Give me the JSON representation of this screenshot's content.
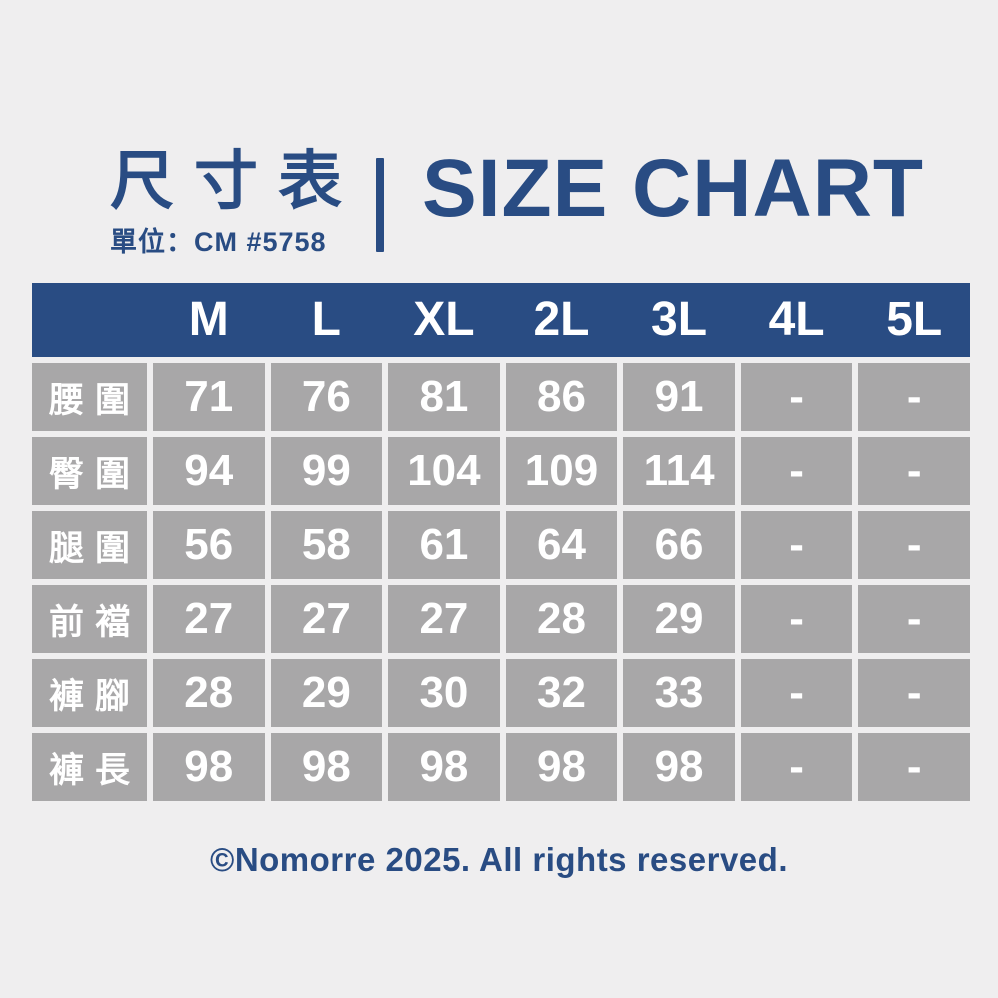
{
  "page": {
    "background_color": "#efeeef",
    "accent_color": "#294c83",
    "cell_color": "#a8a7a8"
  },
  "header": {
    "title_zh": "尺寸表",
    "unit_line": "單位：CM #5758",
    "title_en": "SIZE CHART"
  },
  "table": {
    "columns": [
      "M",
      "L",
      "XL",
      "2L",
      "3L",
      "4L",
      "5L"
    ],
    "rows": [
      {
        "label": "腰圍",
        "values": [
          "71",
          "76",
          "81",
          "86",
          "91",
          "-",
          "-"
        ]
      },
      {
        "label": "臀圍",
        "values": [
          "94",
          "99",
          "104",
          "109",
          "114",
          "-",
          "-"
        ]
      },
      {
        "label": "腿圍",
        "values": [
          "56",
          "58",
          "61",
          "64",
          "66",
          "-",
          "-"
        ]
      },
      {
        "label": "前襠",
        "values": [
          "27",
          "27",
          "27",
          "28",
          "29",
          "-",
          "-"
        ]
      },
      {
        "label": "褲腳",
        "values": [
          "28",
          "29",
          "30",
          "32",
          "33",
          "-",
          "-"
        ]
      },
      {
        "label": "褲長",
        "values": [
          "98",
          "98",
          "98",
          "98",
          "98",
          "-",
          "-"
        ]
      }
    ]
  },
  "footer": {
    "copyright": "©Nomorre 2025. All rights reserved."
  }
}
